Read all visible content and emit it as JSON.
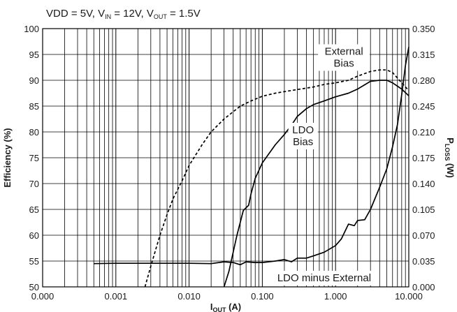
{
  "chart_data": {
    "type": "line",
    "conditions": {
      "prefix": "VDD = 5V, V",
      "in_sub": "IN",
      "mid": " = 12V, V",
      "out_sub": "OUT",
      "suffix": " = 1.5V"
    },
    "xlabel": {
      "main": "I",
      "sub": "OUT",
      "rest": " (A)"
    },
    "ylabel_left": "Efficiency (%)",
    "ylabel_right": {
      "main": "P",
      "sub": "LOSS",
      "rest": " (W)"
    },
    "x_scale": "log",
    "xlim": [
      0.0001,
      10
    ],
    "ylim_left": [
      50,
      100
    ],
    "ylim_right": [
      0,
      0.35
    ],
    "x_ticks": [
      {
        "value": 0.0001,
        "label": "0.000"
      },
      {
        "value": 0.001,
        "label": "0.001"
      },
      {
        "value": 0.01,
        "label": "0.010"
      },
      {
        "value": 0.1,
        "label": "0.100"
      },
      {
        "value": 1,
        "label": "1.000"
      },
      {
        "value": 10,
        "label": "10.000"
      }
    ],
    "y_ticks_left": [
      "50",
      "55",
      "60",
      "65",
      "70",
      "75",
      "80",
      "85",
      "90",
      "95",
      "100"
    ],
    "y_ticks_right": [
      "0.000",
      "0.035",
      "0.070",
      "0.105",
      "0.140",
      "0.175",
      "0.210",
      "0.245",
      "0.280",
      "0.315",
      "0.350"
    ],
    "grid": true,
    "annotations": [
      {
        "lines": [
          "External",
          "Bias"
        ],
        "x": 1.3,
        "y": 94.4
      },
      {
        "lines": [
          "LDO",
          "Bias"
        ],
        "x": 0.36,
        "y": 79.2
      },
      {
        "lines": [
          "LDO minus External"
        ],
        "x": 0.7,
        "y": 51.7
      }
    ],
    "series": [
      {
        "id": "external-bias",
        "axis": "left",
        "style": "dashed",
        "points": [
          [
            0.0025,
            50
          ],
          [
            0.003,
            54
          ],
          [
            0.004,
            60
          ],
          [
            0.005,
            64
          ],
          [
            0.006,
            67
          ],
          [
            0.008,
            70.5
          ],
          [
            0.01,
            73.5
          ],
          [
            0.015,
            77.5
          ],
          [
            0.02,
            80
          ],
          [
            0.03,
            82.5
          ],
          [
            0.05,
            85
          ],
          [
            0.07,
            86
          ],
          [
            0.1,
            86.9
          ],
          [
            0.15,
            87.5
          ],
          [
            0.2,
            87.8
          ],
          [
            0.3,
            88.2
          ],
          [
            0.5,
            88.7
          ],
          [
            0.7,
            89.2
          ],
          [
            1,
            89.5
          ],
          [
            1.5,
            90
          ],
          [
            2,
            90.8
          ],
          [
            3,
            91.7
          ],
          [
            4,
            92
          ],
          [
            5,
            92
          ],
          [
            6,
            91.5
          ],
          [
            8,
            89.5
          ],
          [
            10,
            88
          ]
        ]
      },
      {
        "id": "ldo-bias",
        "axis": "left",
        "style": "solid",
        "points": [
          [
            0.03,
            50
          ],
          [
            0.035,
            53
          ],
          [
            0.045,
            60
          ],
          [
            0.055,
            64.8
          ],
          [
            0.065,
            65.8
          ],
          [
            0.07,
            68
          ],
          [
            0.08,
            71
          ],
          [
            0.1,
            74
          ],
          [
            0.15,
            77.5
          ],
          [
            0.2,
            79.5
          ],
          [
            0.25,
            81.3
          ],
          [
            0.3,
            83
          ],
          [
            0.4,
            84.5
          ],
          [
            0.5,
            85.3
          ],
          [
            0.7,
            86
          ],
          [
            1,
            86.8
          ],
          [
            1.5,
            87.5
          ],
          [
            2,
            88.3
          ],
          [
            3,
            89.8
          ],
          [
            4,
            90
          ],
          [
            5,
            90
          ],
          [
            6,
            89.5
          ],
          [
            8,
            88.3
          ],
          [
            10,
            87
          ]
        ]
      },
      {
        "id": "ldo-minus-external",
        "axis": "right",
        "style": "solid",
        "points": [
          [
            0.0005,
            0.0315
          ],
          [
            0.001,
            0.032
          ],
          [
            0.002,
            0.032
          ],
          [
            0.005,
            0.032
          ],
          [
            0.01,
            0.032
          ],
          [
            0.02,
            0.0315
          ],
          [
            0.03,
            0.034
          ],
          [
            0.04,
            0.033
          ],
          [
            0.05,
            0.03
          ],
          [
            0.06,
            0.034
          ],
          [
            0.08,
            0.033
          ],
          [
            0.1,
            0.033
          ],
          [
            0.15,
            0.035
          ],
          [
            0.2,
            0.037
          ],
          [
            0.25,
            0.034
          ],
          [
            0.3,
            0.039
          ],
          [
            0.4,
            0.039
          ],
          [
            0.5,
            0.042
          ],
          [
            0.7,
            0.047
          ],
          [
            1,
            0.056
          ],
          [
            1.2,
            0.065
          ],
          [
            1.5,
            0.085
          ],
          [
            1.8,
            0.083
          ],
          [
            2,
            0.09
          ],
          [
            2.5,
            0.091
          ],
          [
            3,
            0.105
          ],
          [
            4,
            0.135
          ],
          [
            5,
            0.16
          ],
          [
            6,
            0.19
          ],
          [
            7,
            0.22
          ],
          [
            8,
            0.26
          ],
          [
            9,
            0.3
          ],
          [
            10,
            0.325
          ]
        ]
      }
    ]
  }
}
